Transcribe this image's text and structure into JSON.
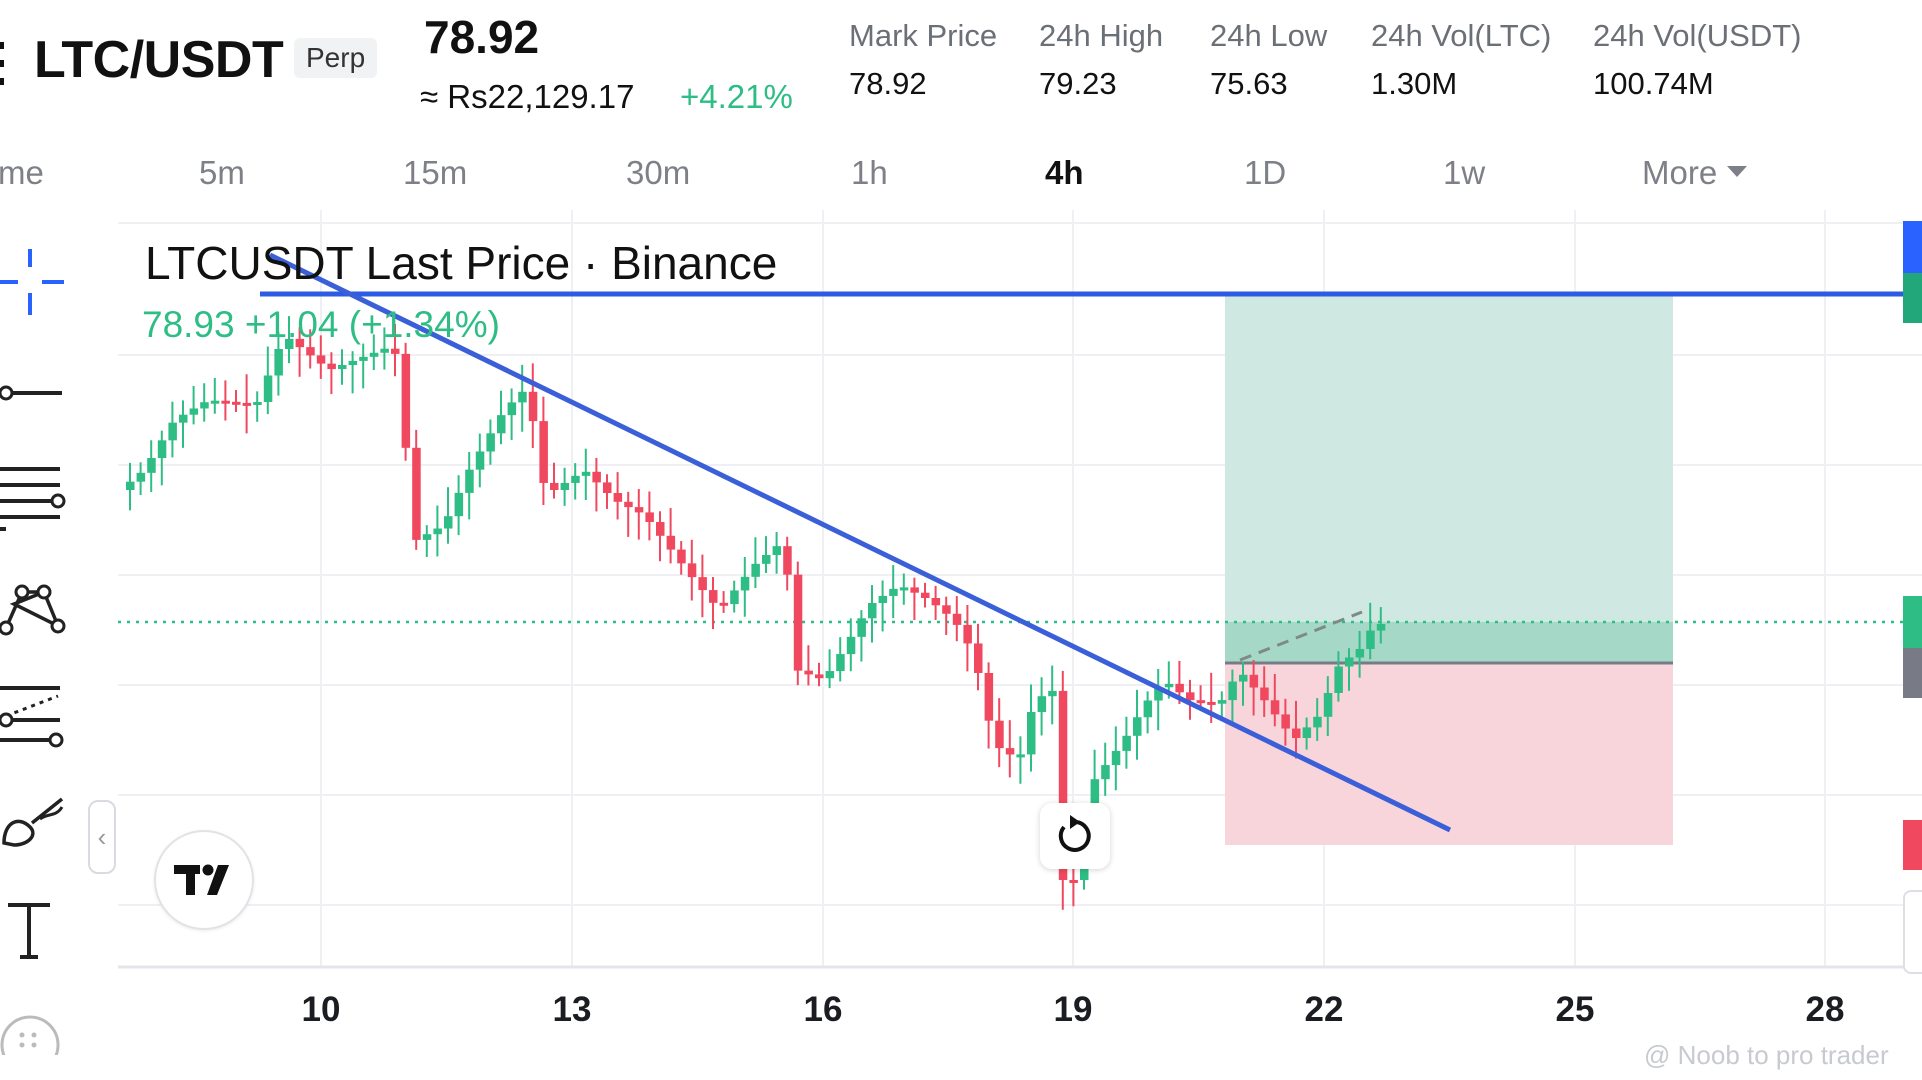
{
  "header": {
    "pair": "LTC/USDT",
    "contract_type": "Perp",
    "last_price": "78.92",
    "converted_price": "≈ Rs22,129.17",
    "change_percent": "+4.21%",
    "stats": [
      {
        "label": "Mark Price",
        "value": "78.92"
      },
      {
        "label": "24h High",
        "value": "79.23"
      },
      {
        "label": "24h Low",
        "value": "75.63"
      },
      {
        "label": "24h Vol(LTC)",
        "value": "1.30M"
      },
      {
        "label": "24h Vol(USDT)",
        "value": "100.74M"
      }
    ]
  },
  "timeframes": {
    "items": [
      "me",
      "5m",
      "15m",
      "30m",
      "1h",
      "4h",
      "1D",
      "1w",
      "More"
    ],
    "active": "4h"
  },
  "toolbar": {
    "tools": [
      "crosshair-icon",
      "horizontal-line-icon",
      "fib-retracement-icon",
      "pattern-icon",
      "forecast-icon",
      "brush-icon",
      "text-icon"
    ]
  },
  "chart": {
    "legend_title": "LTCUSDT Last Price · Binance",
    "legend_values": "78.93  +1.04 (+1.34%)",
    "x_ticks": [
      "10",
      "13",
      "16",
      "19",
      "22",
      "25",
      "28"
    ],
    "colors": {
      "up": "#2ebd85",
      "down": "#f0495f",
      "trendline": "#3a5fd8",
      "profit_zone": "#cfe9e2",
      "loss_zone": "#f8d5da"
    }
  },
  "watermark": "@ Noob to pro trader"
}
